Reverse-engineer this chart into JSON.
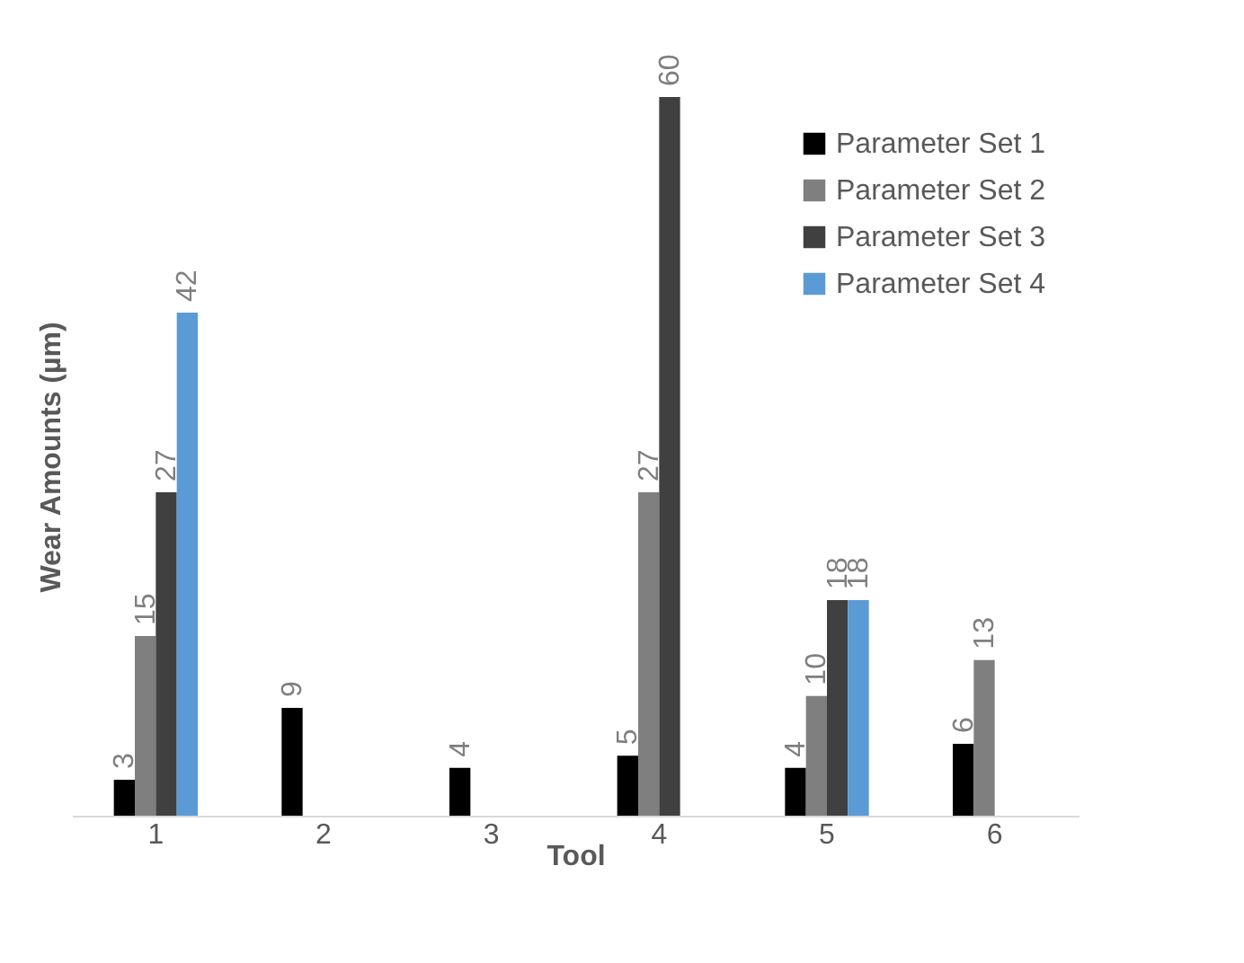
{
  "chart_data": {
    "type": "bar",
    "xlabel": "Tool",
    "ylabel": "Wear Amounts (µm)",
    "categories": [
      "1",
      "2",
      "3",
      "4",
      "5",
      "6"
    ],
    "series": [
      {
        "name": "Parameter Set 1",
        "color": "#000000",
        "values": [
          3,
          9,
          4,
          5,
          4,
          6
        ]
      },
      {
        "name": "Parameter Set 2",
        "color": "#7f7f7f",
        "values": [
          15,
          null,
          null,
          27,
          10,
          13
        ]
      },
      {
        "name": "Parameter Set 3",
        "color": "#404040",
        "values": [
          27,
          null,
          null,
          60,
          18,
          null
        ]
      },
      {
        "name": "Parameter Set 4",
        "color": "#5b9bd5",
        "values": [
          42,
          null,
          null,
          null,
          18,
          null
        ]
      }
    ],
    "data_labels": true,
    "legend": "top right",
    "grid": false
  }
}
